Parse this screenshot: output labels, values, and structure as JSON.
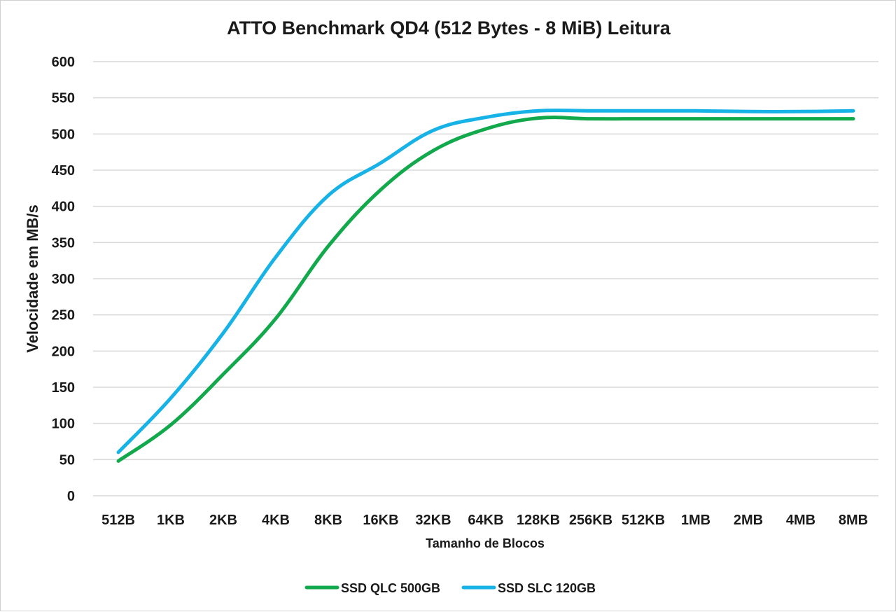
{
  "chart_data": {
    "type": "line",
    "title": "ATTO Benchmark QD4 (512 Bytes - 8 MiB) Leitura",
    "xlabel": "Tamanho de Blocos",
    "ylabel": "Velocidade em MB/s",
    "ylim": [
      0,
      600
    ],
    "yticks": [
      0,
      50,
      100,
      150,
      200,
      250,
      300,
      350,
      400,
      450,
      500,
      550,
      600
    ],
    "ytick_labels": [
      "0",
      "50",
      "100",
      "150",
      "200",
      "250",
      "300",
      "350",
      "400",
      "450",
      "500",
      "550",
      "600"
    ],
    "grid": true,
    "legend_position": "bottom",
    "categories": [
      "512B",
      "1KB",
      "2KB",
      "4KB",
      "8KB",
      "16KB",
      "32KB",
      "64KB",
      "128KB",
      "256KB",
      "512KB",
      "1MB",
      "2MB",
      "4MB",
      "8MB"
    ],
    "series": [
      {
        "name": "SSD QLC 500GB",
        "color": "#12a94c",
        "values": [
          48,
          98,
          168,
          245,
          345,
          423,
          477,
          507,
          522,
          521,
          521,
          521,
          521,
          521,
          521
        ]
      },
      {
        "name": "SSD SLC 120GB",
        "color": "#17b2e6",
        "values": [
          60,
          135,
          225,
          330,
          415,
          460,
          505,
          523,
          532,
          532,
          532,
          532,
          531,
          531,
          532
        ]
      }
    ]
  }
}
